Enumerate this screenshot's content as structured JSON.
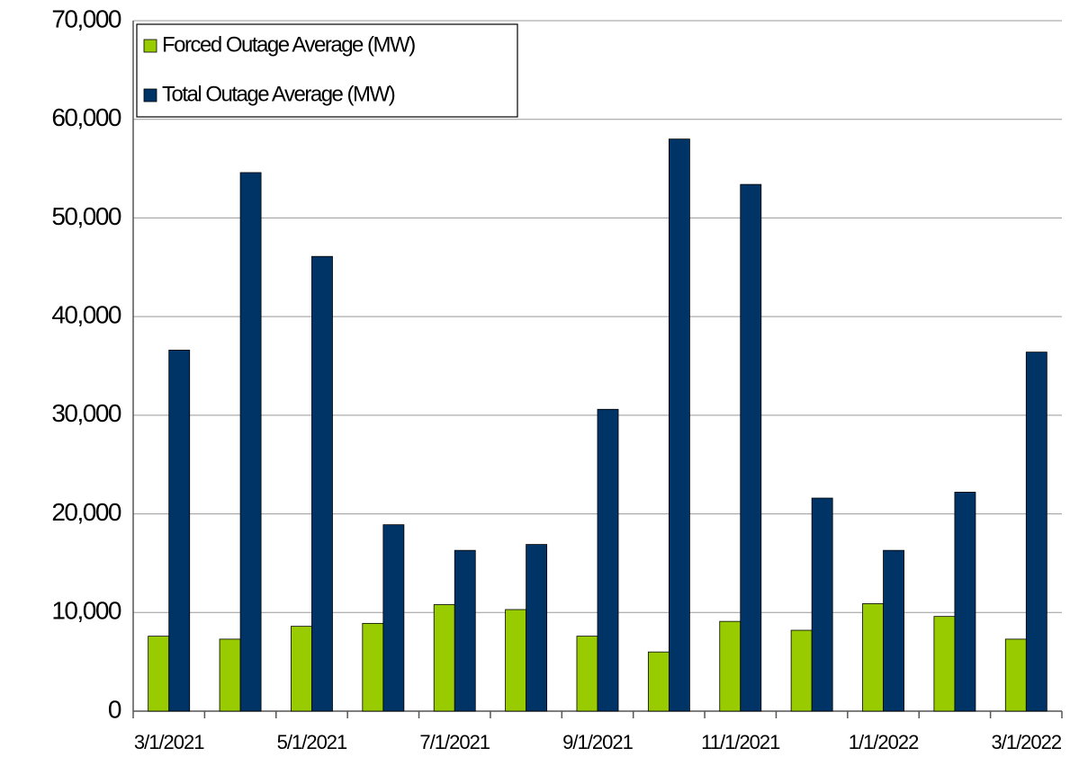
{
  "chart_data": {
    "type": "bar",
    "categories": [
      "3/1/2021",
      null,
      "5/1/2021",
      null,
      "7/1/2021",
      null,
      "9/1/2021",
      null,
      "11/1/2021",
      null,
      "1/1/2022",
      null,
      "3/1/2022"
    ],
    "series": [
      {
        "name": "Forced Outage Average (MW)",
        "color": "#99cc00",
        "values": [
          7600,
          7300,
          8600,
          8900,
          10800,
          10300,
          7600,
          6000,
          9100,
          8200,
          10900,
          9600,
          7300
        ]
      },
      {
        "name": "Total Outage Average (MW)",
        "color": "#003366",
        "values": [
          36600,
          54600,
          46100,
          18900,
          16300,
          16900,
          30600,
          58000,
          53400,
          21600,
          16300,
          22200,
          36400
        ]
      }
    ],
    "ylim": [
      0,
      70000
    ],
    "yticks": [
      0,
      {
        "value": 10000,
        "label": "10,000"
      },
      {
        "value": 20000,
        "label": "20,000"
      },
      {
        "value": 30000,
        "label": "30,000"
      },
      {
        "value": 40000,
        "label": "40,000"
      },
      {
        "value": 50000,
        "label": "50,000"
      },
      {
        "value": 60000,
        "label": "60,000"
      },
      {
        "value": 70000,
        "label": "70,000"
      }
    ],
    "grid": true,
    "legend": "upper-left"
  }
}
